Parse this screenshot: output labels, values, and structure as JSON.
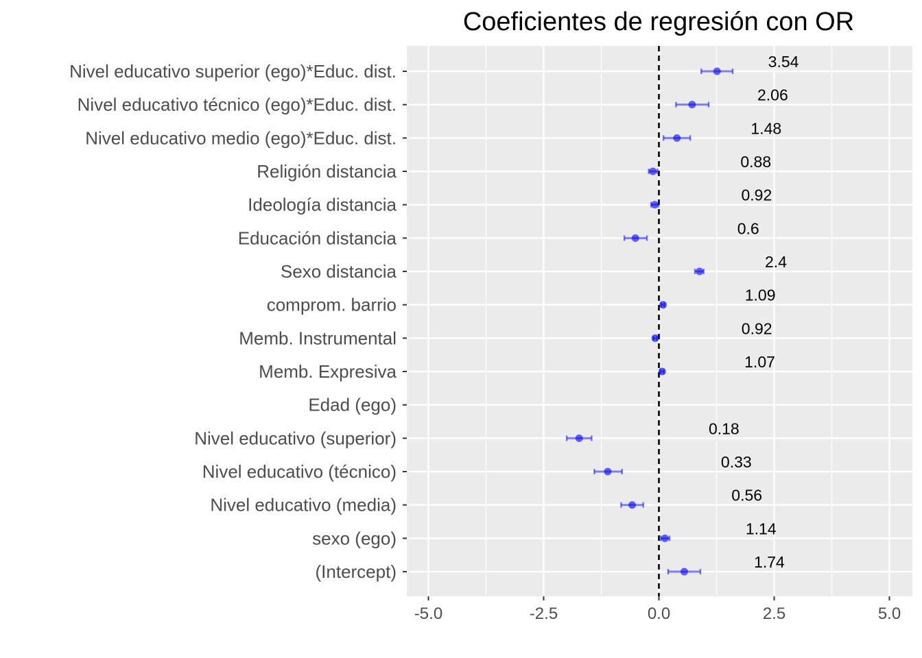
{
  "chart_data": {
    "type": "scatter",
    "title": "Coeficientes de regresión con OR",
    "xlabel": "",
    "ylabel": "",
    "xlim": [
      -5.5,
      5.5
    ],
    "x_ticks": [
      -5.0,
      -2.5,
      0.0,
      2.5,
      5.0
    ],
    "x_tick_labels": [
      "-5.0",
      "-2.5",
      "0.0",
      "2.5",
      "5.0"
    ],
    "reference_line": 0,
    "grid": true,
    "point_color": "#0000ff",
    "points": [
      {
        "label": "Nivel educativo superior (ego)*Educ. dist.",
        "estimate": 1.26,
        "low": 0.92,
        "high": 1.6,
        "or_label": "3.54"
      },
      {
        "label": "Nivel educativo técnico (ego)*Educ. dist.",
        "estimate": 0.72,
        "low": 0.37,
        "high": 1.08,
        "or_label": "2.06"
      },
      {
        "label": "Nivel educativo medio (ego)*Educ. dist.",
        "estimate": 0.39,
        "low": 0.1,
        "high": 0.68,
        "or_label": "1.48"
      },
      {
        "label": "Religión distancia",
        "estimate": -0.13,
        "low": -0.22,
        "high": -0.03,
        "or_label": "0.88"
      },
      {
        "label": "Ideología distancia",
        "estimate": -0.09,
        "low": -0.17,
        "high": -0.01,
        "or_label": "0.92"
      },
      {
        "label": "Educación distancia",
        "estimate": -0.51,
        "low": -0.75,
        "high": -0.26,
        "or_label": "0.6"
      },
      {
        "label": "Sexo distancia",
        "estimate": 0.88,
        "low": 0.78,
        "high": 0.97,
        "or_label": "2.4"
      },
      {
        "label": "comprom. barrio",
        "estimate": 0.09,
        "low": 0.05,
        "high": 0.12,
        "or_label": "1.09"
      },
      {
        "label": "Memb. Instrumental",
        "estimate": -0.08,
        "low": -0.12,
        "high": -0.04,
        "or_label": "0.92"
      },
      {
        "label": "Memb. Expresiva",
        "estimate": 0.07,
        "low": 0.03,
        "high": 0.11,
        "or_label": "1.07"
      },
      {
        "label": "Edad (ego)",
        "estimate": null,
        "low": null,
        "high": null,
        "or_label": ""
      },
      {
        "label": "Nivel educativo (superior)",
        "estimate": -1.73,
        "low": -2.0,
        "high": -1.46,
        "or_label": "0.18"
      },
      {
        "label": "Nivel educativo (técnico)",
        "estimate": -1.11,
        "low": -1.4,
        "high": -0.8,
        "or_label": "0.33"
      },
      {
        "label": "Nivel educativo (media)",
        "estimate": -0.58,
        "low": -0.82,
        "high": -0.34,
        "or_label": "0.56"
      },
      {
        "label": "sexo (ego)",
        "estimate": 0.13,
        "low": 0.04,
        "high": 0.23,
        "or_label": "1.14"
      },
      {
        "label": "(Intercept)",
        "estimate": 0.55,
        "low": 0.2,
        "high": 0.9,
        "or_label": "1.74"
      }
    ]
  }
}
